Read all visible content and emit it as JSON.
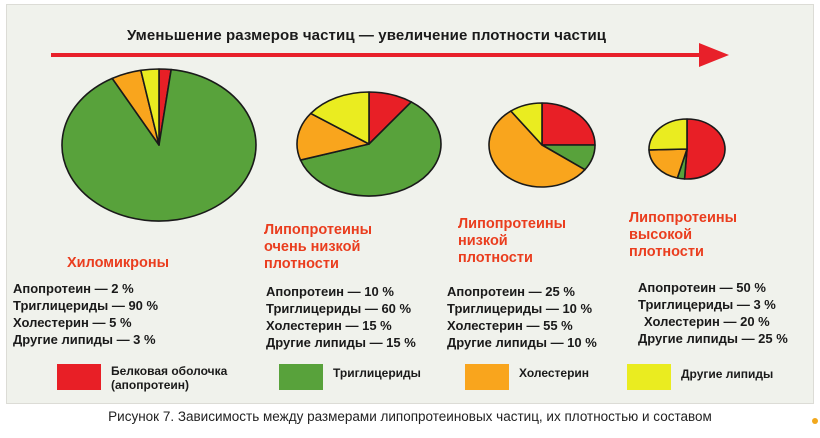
{
  "header": {
    "arrow_text": "Уменьшение размеров частиц — увеличение плотности частиц"
  },
  "colors": {
    "protein": "#e81f26",
    "triglycerides": "#58a23b",
    "cholesterol": "#f9a51d",
    "other": "#eaec20",
    "accent": "#ea3d1e",
    "arrow": "#e8202a"
  },
  "chart_data": [
    {
      "type": "pie",
      "title": "Хиломикроны",
      "labels": [
        "Апопротеин",
        "Триглицериды",
        "Холестерин",
        "Другие липиды"
      ],
      "values": [
        2,
        90,
        5,
        3
      ],
      "lines": [
        "Апопротеин — 2 %",
        "Триглицериды — 90 %",
        "Холестерин — 5 %",
        "Другие липиды — 3 %"
      ]
    },
    {
      "type": "pie",
      "title": "Липопротеины\nочень низкой\nплотности",
      "labels": [
        "Апопротеин",
        "Триглицериды",
        "Холестерин",
        "Другие липиды"
      ],
      "values": [
        10,
        60,
        15,
        15
      ],
      "lines": [
        "Апопротеин — 10 %",
        "Триглицериды — 60 %",
        "Холестерин — 15 %",
        "Другие липиды — 15 %"
      ]
    },
    {
      "type": "pie",
      "title": "Липопротеины\nнизкой\nплотности",
      "labels": [
        "Апопротеин",
        "Триглицериды",
        "Холестерин",
        "Другие липиды"
      ],
      "values": [
        25,
        10,
        55,
        10
      ],
      "lines": [
        "Апопротеин — 25 %",
        "Триглицериды — 10 %",
        "Холестерин — 55 %",
        "Другие липиды — 10 %"
      ]
    },
    {
      "type": "pie",
      "title": "Липопротеины\nвысокой\nплотности",
      "labels": [
        "Апопротеин",
        "Триглицериды",
        "Холестерин",
        "Другие липиды"
      ],
      "values": [
        50,
        3,
        20,
        25
      ],
      "lines": [
        "Апопротеин — 50 %",
        "Триглицериды — 3 %",
        "Холестерин — 20 %",
        "Другие липиды — 25 %"
      ]
    }
  ],
  "legend": [
    {
      "label": "Белковая оболочка\n(апопротеин)",
      "color": "#e81f26"
    },
    {
      "label": "Триглицериды",
      "color": "#58a23b"
    },
    {
      "label": "Холестерин",
      "color": "#f9a51d"
    },
    {
      "label": "Другие липиды",
      "color": "#eaec20"
    }
  ],
  "caption": "Рисунок 7.  Зависимость между размерами липопротеиновых частиц, их плотностью и составом"
}
